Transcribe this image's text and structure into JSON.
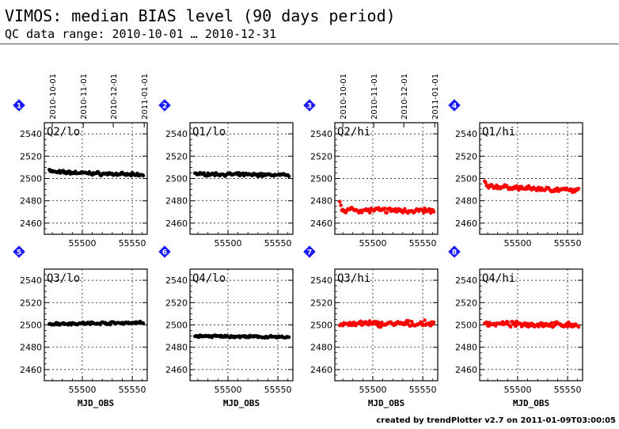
{
  "header": {
    "title": "VIMOS: median BIAS level (90 days period)",
    "subtitle": "QC data range: 2010-10-01 … 2010-12-31"
  },
  "footer": {
    "credit": "created by trendPlotter v2.7 on 2011-01-09T03:00:05"
  },
  "colors": {
    "lo_points": "#000000",
    "hi_points": "#ff0000",
    "badge": "#1a1aff"
  },
  "date_ticks": {
    "labels": [
      "2010-10-01",
      "2010-11-01",
      "2010-12-01",
      "2011-01-01"
    ],
    "mjd": [
      55470,
      55501,
      55531,
      55562
    ]
  },
  "chart_data": [
    {
      "type": "scatter",
      "badge": "1",
      "label": "Q2/lo",
      "series_color": "lo",
      "date_axis": true,
      "xlabel": "",
      "xlim": [
        55462,
        55565
      ],
      "ylim": [
        2450,
        2550
      ],
      "yticks": [
        2460,
        2480,
        2500,
        2520,
        2540
      ],
      "xticks": [
        55500,
        55550
      ],
      "grid": true,
      "level": 2506,
      "start": 2508,
      "slope": -3,
      "noise": 0.9
    },
    {
      "type": "scatter",
      "badge": "2",
      "label": "Q1/lo",
      "series_color": "lo",
      "date_axis": false,
      "xlabel": "",
      "xlim": [
        55462,
        55565
      ],
      "ylim": [
        2450,
        2550
      ],
      "yticks": [
        2460,
        2480,
        2500,
        2520,
        2540
      ],
      "xticks": [
        55500,
        55550
      ],
      "grid": true,
      "level": 2504,
      "start": 2505,
      "slope": -1,
      "noise": 0.8
    },
    {
      "type": "scatter",
      "badge": "3",
      "label": "Q2/hi",
      "series_color": "hi",
      "date_axis": true,
      "xlabel": "",
      "xlim": [
        55462,
        55565
      ],
      "ylim": [
        2450,
        2550
      ],
      "yticks": [
        2460,
        2480,
        2500,
        2520,
        2540
      ],
      "xticks": [
        55500,
        55550
      ],
      "grid": true,
      "level": 2472,
      "start": 2477,
      "slope": -1,
      "noise": 1.4
    },
    {
      "type": "scatter",
      "badge": "4",
      "label": "Q1/hi",
      "series_color": "hi",
      "date_axis": false,
      "xlabel": "",
      "xlim": [
        55462,
        55565
      ],
      "ylim": [
        2450,
        2550
      ],
      "yticks": [
        2460,
        2480,
        2500,
        2520,
        2540
      ],
      "xticks": [
        55500,
        55550
      ],
      "grid": true,
      "level": 2493,
      "start": 2496,
      "slope": -4,
      "noise": 1.2
    },
    {
      "type": "scatter",
      "badge": "5",
      "label": "Q3/lo",
      "series_color": "lo",
      "date_axis": false,
      "xlabel": "MJD_OBS",
      "xlim": [
        55462,
        55565
      ],
      "ylim": [
        2450,
        2550
      ],
      "yticks": [
        2460,
        2480,
        2500,
        2520,
        2540
      ],
      "xticks": [
        55500,
        55550
      ],
      "grid": true,
      "level": 2501,
      "start": 2501,
      "slope": 1,
      "noise": 0.7
    },
    {
      "type": "scatter",
      "badge": "6",
      "label": "Q4/lo",
      "series_color": "lo",
      "date_axis": false,
      "xlabel": "MJD_OBS",
      "xlim": [
        55462,
        55565
      ],
      "ylim": [
        2450,
        2550
      ],
      "yticks": [
        2460,
        2480,
        2500,
        2520,
        2540
      ],
      "xticks": [
        55500,
        55550
      ],
      "grid": true,
      "level": 2490,
      "start": 2490,
      "slope": -1,
      "noise": 0.6
    },
    {
      "type": "scatter",
      "badge": "7",
      "label": "Q3/hi",
      "series_color": "hi",
      "date_axis": false,
      "xlabel": "MJD_OBS",
      "xlim": [
        55462,
        55565
      ],
      "ylim": [
        2450,
        2550
      ],
      "yticks": [
        2460,
        2480,
        2500,
        2520,
        2540
      ],
      "xticks": [
        55500,
        55550
      ],
      "grid": true,
      "level": 2501,
      "start": 2500,
      "slope": 0,
      "noise": 1.6
    },
    {
      "type": "scatter",
      "badge": "8",
      "label": "Q4/hi",
      "series_color": "hi",
      "date_axis": false,
      "xlabel": "MJD_OBS",
      "xlim": [
        55462,
        55565
      ],
      "ylim": [
        2450,
        2550
      ],
      "yticks": [
        2460,
        2480,
        2500,
        2520,
        2540
      ],
      "xticks": [
        55500,
        55550
      ],
      "grid": true,
      "level": 2501,
      "start": 2502,
      "slope": -1,
      "noise": 1.3
    }
  ]
}
